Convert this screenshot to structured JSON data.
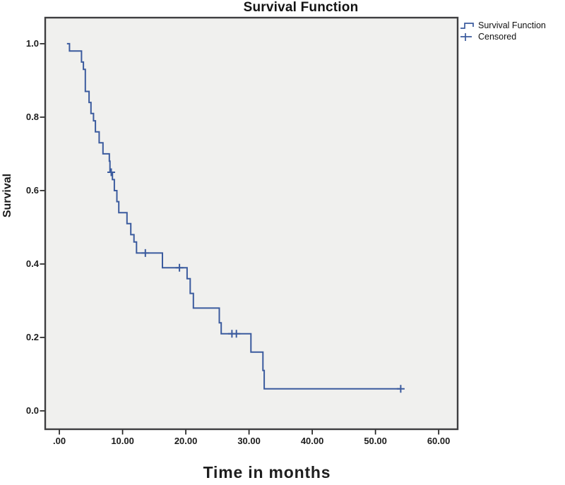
{
  "chart_data": {
    "type": "line",
    "subtype": "kaplan_meier_step",
    "title": "Survival Function",
    "xlabel": "Time in months",
    "ylabel": "Survival",
    "x_ticks": {
      "labels": [
        ".00",
        "10.00",
        "20.00",
        "30.00",
        "40.00",
        "50.00",
        "60.00"
      ],
      "values": [
        0,
        10,
        20,
        30,
        40,
        50,
        60
      ]
    },
    "y_ticks": {
      "labels": [
        "0.0",
        "0.2",
        "0.4",
        "0.6",
        "0.8",
        "1.0"
      ],
      "values": [
        0,
        0.2,
        0.4,
        0.6,
        0.8,
        1.0
      ]
    },
    "xlim": [
      -2.24,
      63.0
    ],
    "ylim": [
      -0.05,
      1.071
    ],
    "grid": false,
    "legend_position": "top-right-outside",
    "plot_background": "#f0f0ee",
    "frame_color": "#3e3e40",
    "tick_color": "#222222",
    "line_color": "#3b5b9e",
    "series": [
      {
        "name": "Survival Function",
        "type": "step",
        "color": "#3b5b9e",
        "points": [
          [
            1.2,
            1.0
          ],
          [
            1.6,
            0.98
          ],
          [
            3.5,
            0.95
          ],
          [
            3.8,
            0.93
          ],
          [
            4.1,
            0.87
          ],
          [
            4.7,
            0.84
          ],
          [
            5.0,
            0.81
          ],
          [
            5.4,
            0.79
          ],
          [
            5.7,
            0.76
          ],
          [
            6.3,
            0.73
          ],
          [
            6.9,
            0.7
          ],
          [
            7.9,
            0.68
          ],
          [
            8.0,
            0.65
          ],
          [
            8.4,
            0.63
          ],
          [
            8.7,
            0.6
          ],
          [
            9.1,
            0.57
          ],
          [
            9.4,
            0.54
          ],
          [
            10.7,
            0.51
          ],
          [
            11.3,
            0.48
          ],
          [
            11.8,
            0.46
          ],
          [
            12.2,
            0.43
          ],
          [
            16.3,
            0.39
          ],
          [
            20.2,
            0.36
          ],
          [
            20.7,
            0.32
          ],
          [
            21.2,
            0.28
          ],
          [
            25.3,
            0.24
          ],
          [
            25.6,
            0.21
          ],
          [
            30.3,
            0.16
          ],
          [
            32.2,
            0.11
          ],
          [
            32.4,
            0.06
          ],
          [
            54.0,
            0.06
          ]
        ]
      },
      {
        "name": "Censored",
        "type": "marker",
        "marker": "plus",
        "color": "#3b5b9e",
        "points": [
          [
            8.2,
            0.65
          ],
          [
            13.6,
            0.43
          ],
          [
            19.0,
            0.39
          ],
          [
            27.3,
            0.21
          ],
          [
            28.0,
            0.21
          ],
          [
            54.0,
            0.06
          ]
        ]
      }
    ],
    "legend": {
      "items": [
        {
          "label": "Survival Function",
          "symbol": "step-line"
        },
        {
          "label": "Censored",
          "symbol": "plus"
        }
      ]
    }
  }
}
